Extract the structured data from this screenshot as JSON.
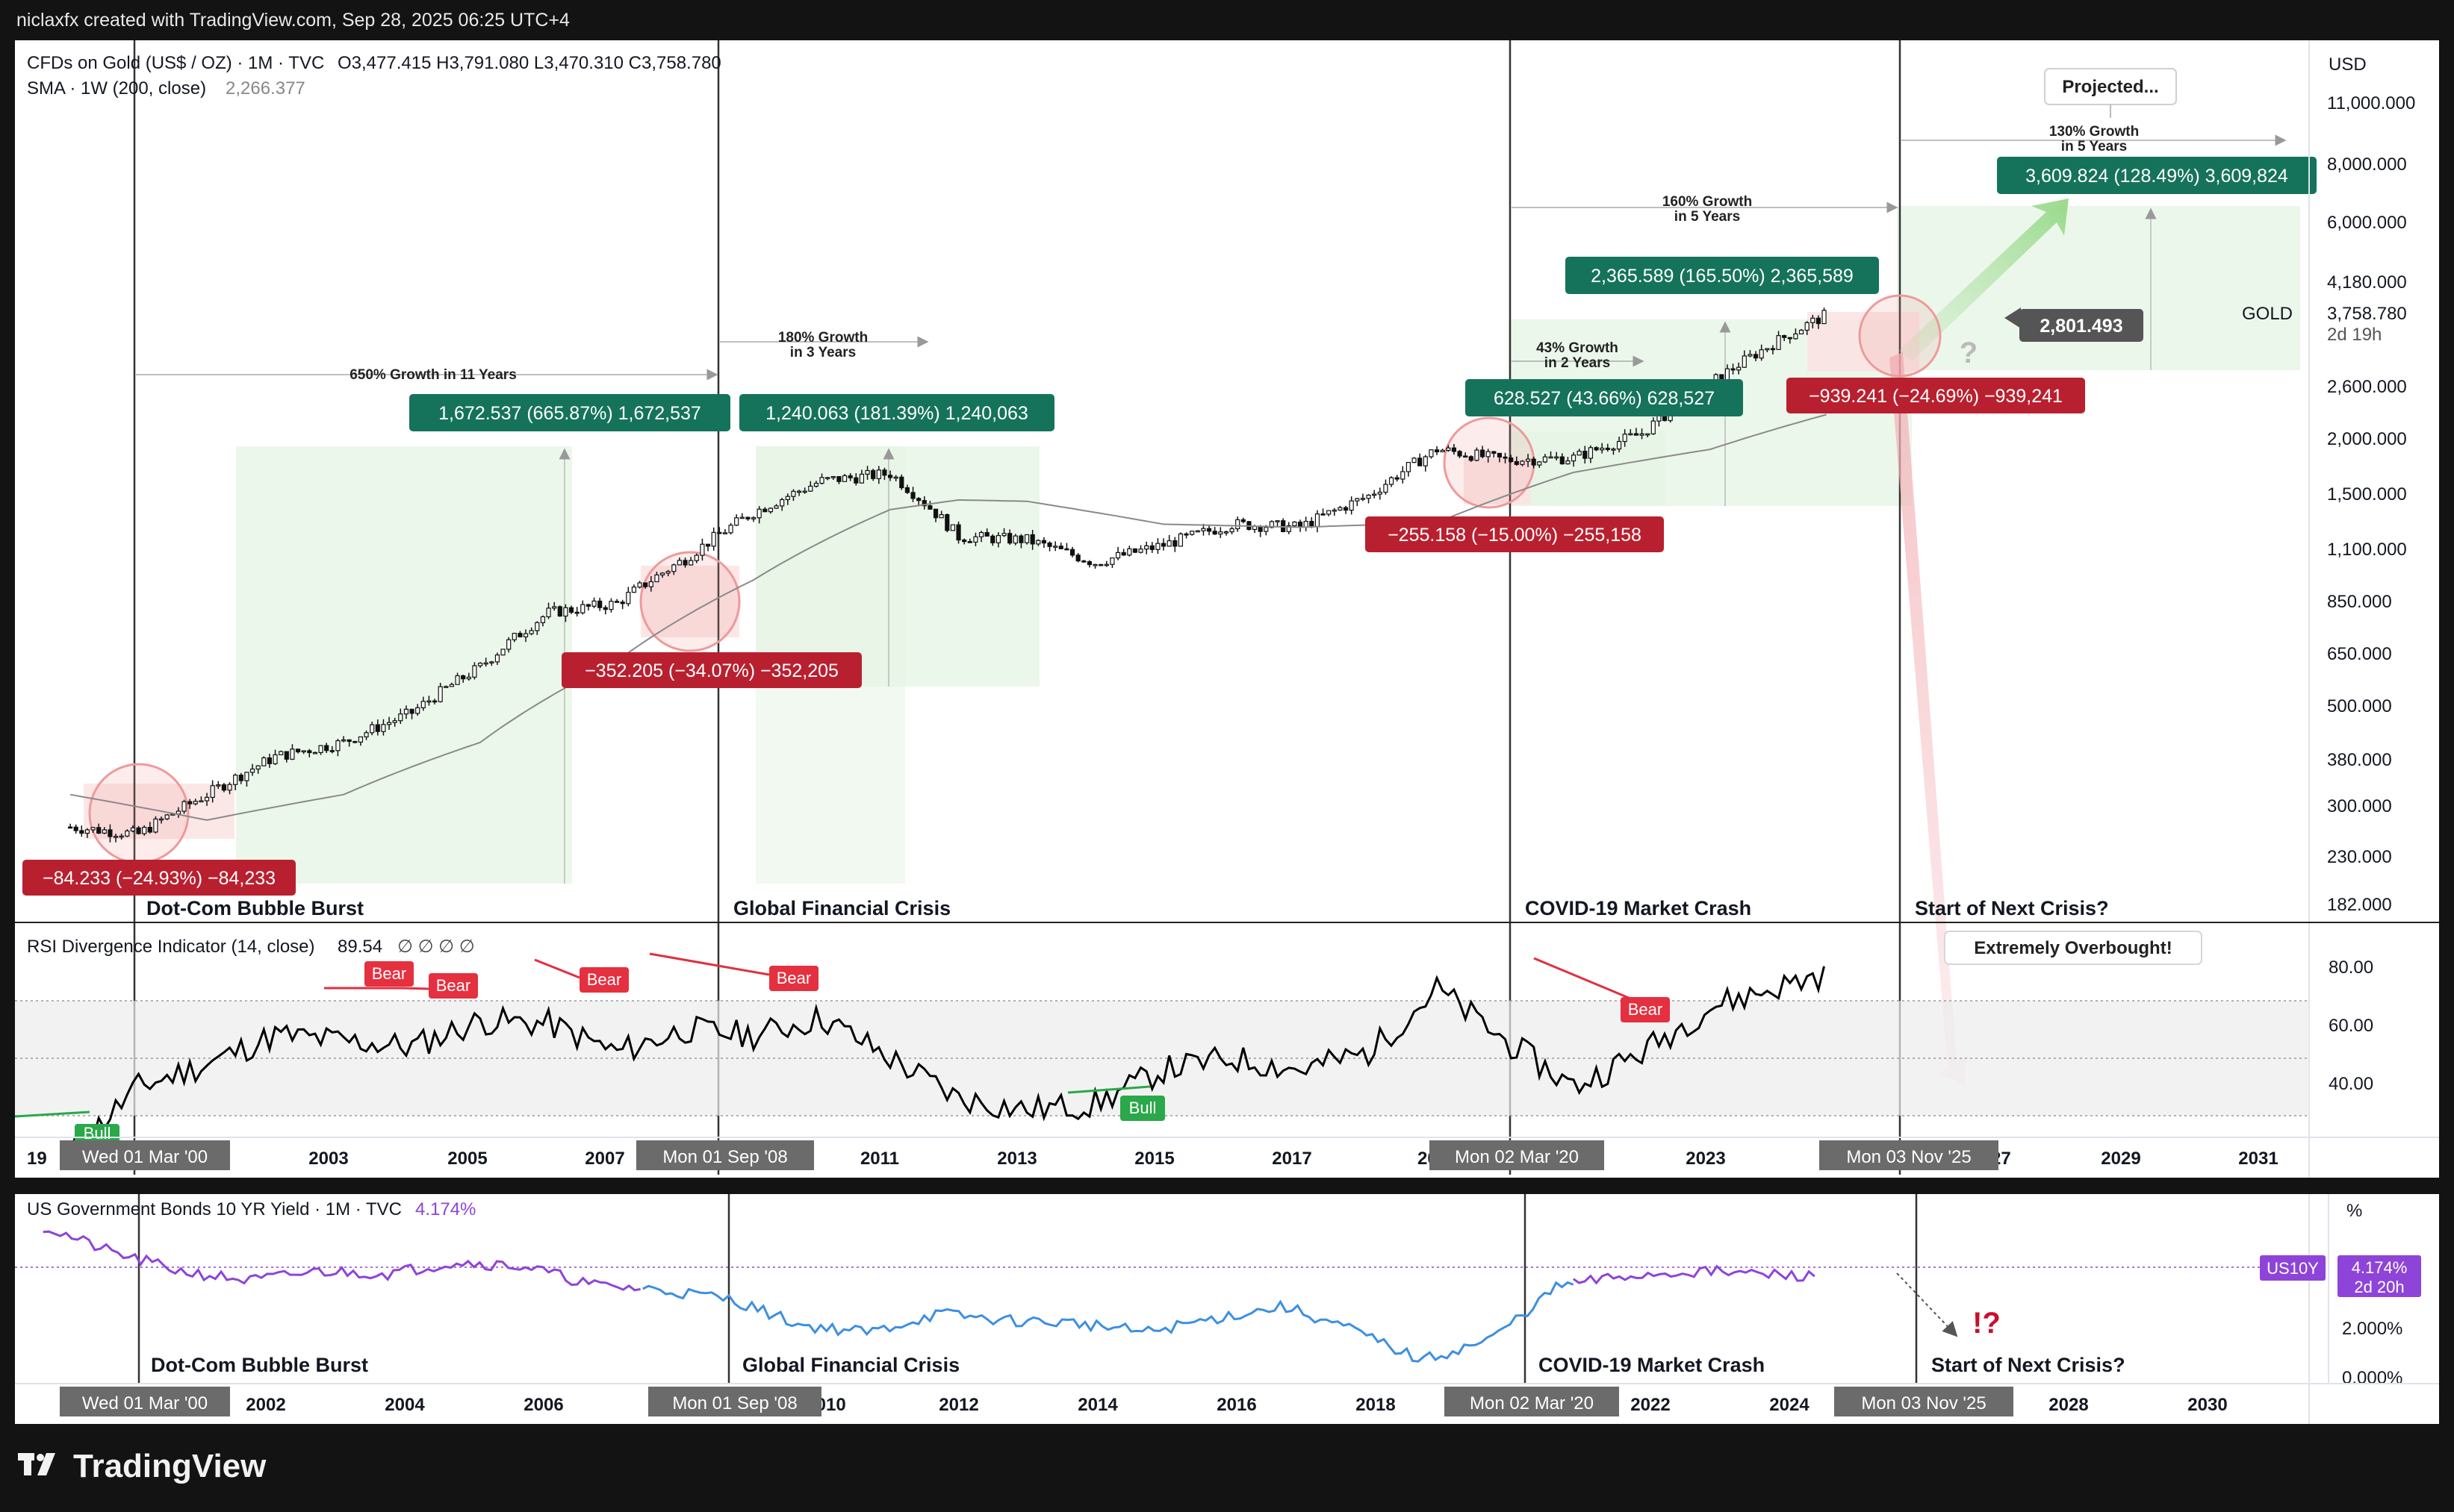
{
  "header": {
    "credit": "niclaxfx created with TradingView.com, Sep 28, 2025 06:25 UTC+4"
  },
  "brand": {
    "name": "TradingView"
  },
  "main_pane": {
    "symbol": "CFDs on Gold (US$ / OZ) · 1M · TVC",
    "ohlc": "O3,477.415  H3,791.080  L3,470.310  C3,758.780",
    "sma_label": "SMA · 1W (200, close)",
    "sma_value": "2,266.377",
    "currency": "USD",
    "price_axis": [
      "11,000.000",
      "8,000.000",
      "6,000.000",
      "4,180.000",
      "3,758.780",
      "2d 19h",
      "2,600.000",
      "2,000.000",
      "1,500.000",
      "1,100.000",
      "850.000",
      "650.000",
      "500.000",
      "380.000",
      "300.000",
      "230.000",
      "182.000"
    ],
    "gold_tag": "GOLD",
    "crisis_labels": [
      "Dot-Com Bubble Burst",
      "Global Financial Crisis",
      "COVID-19 Market Crash",
      "Start of Next Crisis?"
    ],
    "growth_notes": [
      {
        "line1": "650% Growth in 11 Years",
        "line2": ""
      },
      {
        "line1": "180% Growth",
        "line2": "in 3 Years"
      },
      {
        "line1": "160% Growth",
        "line2": "in 5 Years"
      },
      {
        "line1": "43% Growth",
        "line2": "in 2 Years"
      },
      {
        "line1": "130% Growth",
        "line2": "in 5 Years"
      }
    ],
    "green_boxes": [
      "1,672.537 (665.87%) 1,672,537",
      "1,240.063 (181.39%) 1,240,063",
      "628.527 (43.66%) 628,527",
      "2,365.589 (165.50%) 2,365,589",
      "3,609.824 (128.49%) 3,609,824"
    ],
    "red_boxes": [
      "−84.233 (−24.93%) −84,233",
      "−352.205 (−34.07%) −352,205",
      "−255.158 (−15.00%) −255,158",
      "−939.241 (−24.69%) −939,241"
    ],
    "projected_label": "Projected...",
    "target_label": "2,801.493",
    "question_mark": "?"
  },
  "rsi_pane": {
    "title": "RSI Divergence Indicator (14, close)",
    "value": "89.54",
    "markers": "∅ ∅ ∅ ∅",
    "axis": [
      "80.00",
      "60.00",
      "40.00"
    ],
    "bear_labels": [
      "Bear",
      "Bear",
      "Bear",
      "Bear",
      "Bear"
    ],
    "bull_labels": [
      "Bull",
      "Bull"
    ],
    "overbought_note": "Extremely Overbought!"
  },
  "time_axis_gold": {
    "labels": [
      "19",
      "2003",
      "2005",
      "2007",
      "2011",
      "2013",
      "2015",
      "2017",
      "20",
      "2023",
      "27",
      "2029",
      "2031"
    ],
    "highlights": [
      "Wed 01 Mar '00",
      "Mon 01 Sep '08",
      "Mon 02 Mar '20",
      "Mon 03 Nov '25"
    ]
  },
  "bond_pane": {
    "title": "US Government Bonds 10 YR Yield · 1M · TVC",
    "value": "4.174%",
    "unit": "%",
    "axis": [
      "2.000%",
      "0.000%"
    ],
    "symbol_tag": "US10Y",
    "value_tag": "4.174%",
    "time_tag": "2d 20h",
    "crisis_labels": [
      "Dot-Com Bubble Burst",
      "Global Financial Crisis",
      "COVID-19 Market Crash",
      "Start of Next Crisis?"
    ],
    "alert": "!?"
  },
  "time_axis_bond": {
    "labels": [
      "2002",
      "2004",
      "2006",
      "2010",
      "2012",
      "2014",
      "2016",
      "2018",
      "2022",
      "2024",
      "2028",
      "2030"
    ],
    "highlights": [
      "Wed 01 Mar '00",
      "Mon 01 Sep '08",
      "Mon 02 Mar '20",
      "Mon 03 Nov '25"
    ]
  },
  "colors": {
    "green": "#16735b",
    "red": "#b9202f",
    "candle": "#111111",
    "sma": "#7a7a7a",
    "rsi": "#000000",
    "bond_early": "#8e44d8",
    "bond_mid": "#3d8fe0",
    "bond_late": "#8e44d8",
    "tag_gray": "#555555"
  },
  "chart_data": {
    "type": "line",
    "series": [
      {
        "name": "CFDs on Gold (US$ / OZ)",
        "x": [
          2000,
          2001,
          2002,
          2003,
          2004,
          2005,
          2006,
          2007,
          2008,
          2009,
          2010,
          2011,
          2012,
          2013,
          2014,
          2015,
          2016,
          2017,
          2018,
          2019,
          2020,
          2021,
          2022,
          2023,
          2024,
          2025.7
        ],
        "values": [
          280,
          270,
          330,
          400,
          430,
          500,
          630,
          830,
          870,
          1090,
          1380,
          1620,
          1680,
          1220,
          1200,
          1070,
          1170,
          1300,
          1280,
          1500,
          1900,
          1800,
          1820,
          2060,
          2650,
          3758
        ]
      },
      {
        "name": "SMA · 1W (200, close)",
        "x": [
          2000,
          2002,
          2004,
          2006,
          2008,
          2010,
          2012,
          2013,
          2014,
          2016,
          2018,
          2020,
          2022,
          2024,
          2025.7
        ],
        "values": [
          330,
          290,
          330,
          430,
          650,
          980,
          1400,
          1470,
          1460,
          1300,
          1280,
          1310,
          1690,
          1900,
          2266
        ]
      },
      {
        "name": "RSI Divergence Indicator (14, close)",
        "x": [
          2000,
          2001,
          2002,
          2003,
          2004,
          2005,
          2006,
          2007,
          2008,
          2009,
          2010,
          2011,
          2012,
          2013,
          2014,
          2015,
          2016,
          2017,
          2018,
          2019,
          2020,
          2021,
          2022,
          2023,
          2024,
          2025.7
        ],
        "values": [
          27,
          50,
          58,
          68,
          66,
          64,
          73,
          72,
          62,
          70,
          68,
          74,
          60,
          46,
          42,
          44,
          56,
          60,
          56,
          62,
          84,
          66,
          50,
          62,
          78,
          89.54
        ]
      },
      {
        "name": "US Government Bonds 10 YR Yield",
        "x": [
          2000,
          2001,
          2002,
          2003,
          2004,
          2005,
          2006,
          2007,
          2008,
          2009,
          2010,
          2011,
          2012,
          2013,
          2014,
          2015,
          2016,
          2017,
          2018,
          2019,
          2020,
          2021,
          2022,
          2023,
          2024,
          2025.7
        ],
        "values": [
          6.3,
          5.2,
          4.4,
          4.0,
          4.4,
          4.3,
          4.8,
          4.6,
          3.8,
          3.6,
          3.2,
          2.1,
          1.8,
          2.6,
          2.3,
          2.2,
          1.8,
          2.4,
          2.9,
          1.9,
          0.6,
          1.5,
          3.8,
          4.2,
          4.4,
          4.174
        ]
      }
    ]
  }
}
